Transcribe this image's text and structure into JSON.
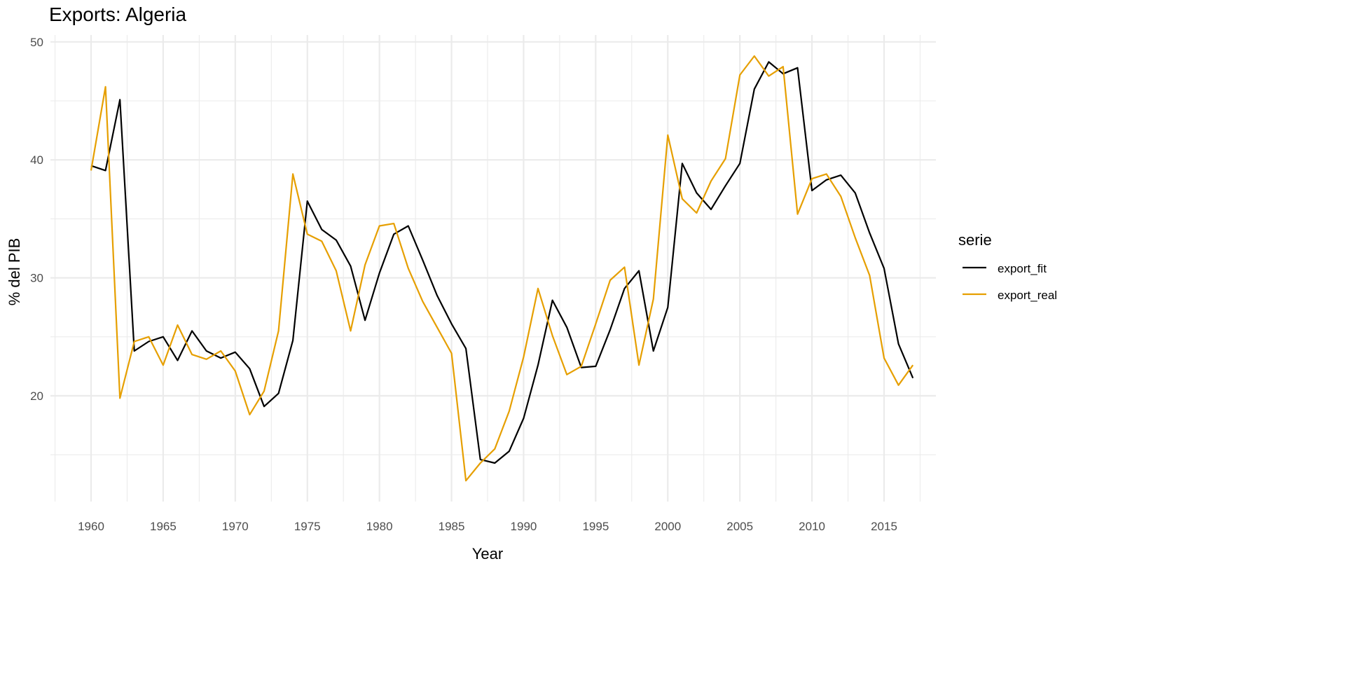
{
  "chart_data": {
    "type": "line",
    "title": "Exports: Algeria",
    "xlabel": "Year",
    "ylabel": "% del PIB",
    "xlim": [
      1957.5,
      2020
    ],
    "ylim": [
      11,
      50.5
    ],
    "x_ticks": [
      1960,
      1965,
      1970,
      1975,
      1980,
      1985,
      1990,
      1995,
      2000,
      2005,
      2010,
      2015
    ],
    "y_ticks": [
      20,
      30,
      40,
      50
    ],
    "grid": true,
    "legend": {
      "title": "serie",
      "placement": "right"
    },
    "x": [
      1960,
      1961,
      1962,
      1963,
      1964,
      1965,
      1966,
      1967,
      1968,
      1969,
      1970,
      1971,
      1972,
      1973,
      1974,
      1975,
      1976,
      1977,
      1978,
      1979,
      1980,
      1981,
      1982,
      1983,
      1984,
      1985,
      1986,
      1987,
      1988,
      1989,
      1990,
      1991,
      1992,
      1993,
      1994,
      1995,
      1996,
      1997,
      1998,
      1999,
      2000,
      2001,
      2002,
      2003,
      2004,
      2005,
      2006,
      2007,
      2008,
      2009,
      2010,
      2011,
      2012,
      2013,
      2014,
      2015,
      2016,
      2017
    ],
    "series": [
      {
        "name": "export_fit",
        "color": "#000000",
        "values": [
          39.5,
          39.1,
          45.1,
          23.8,
          24.6,
          25.0,
          23.0,
          25.5,
          23.8,
          23.2,
          23.7,
          22.3,
          19.1,
          20.2,
          24.7,
          36.5,
          34.1,
          33.2,
          31.0,
          26.4,
          30.4,
          33.7,
          34.4,
          31.5,
          28.5,
          26.1,
          24.0,
          14.6,
          14.3,
          15.3,
          18.1,
          22.6,
          28.1,
          25.8,
          22.4,
          22.5,
          25.6,
          29.1,
          30.6,
          23.8,
          27.5,
          39.7,
          37.2,
          35.8,
          37.8,
          39.7,
          46.0,
          48.3,
          47.3,
          47.8,
          37.4,
          38.3,
          38.7,
          37.2,
          33.8,
          30.8,
          24.4,
          21.5
        ]
      },
      {
        "name": "export_real",
        "color": "#E69F00",
        "values": [
          39.1,
          46.2,
          19.8,
          24.6,
          25.0,
          22.6,
          26.0,
          23.5,
          23.1,
          23.8,
          22.1,
          18.4,
          20.4,
          25.5,
          38.8,
          33.7,
          33.1,
          30.6,
          25.5,
          31.1,
          34.4,
          34.6,
          30.8,
          28.0,
          25.8,
          23.6,
          12.8,
          14.3,
          15.5,
          18.7,
          23.3,
          29.1,
          25.1,
          21.8,
          22.5,
          26.1,
          29.8,
          30.9,
          22.6,
          28.2,
          42.1,
          36.7,
          35.5,
          38.2,
          40.1,
          47.2,
          48.8,
          47.1,
          47.9,
          35.4,
          38.4,
          38.8,
          36.9,
          33.4,
          30.2,
          23.2,
          20.9,
          22.6
        ]
      }
    ]
  }
}
